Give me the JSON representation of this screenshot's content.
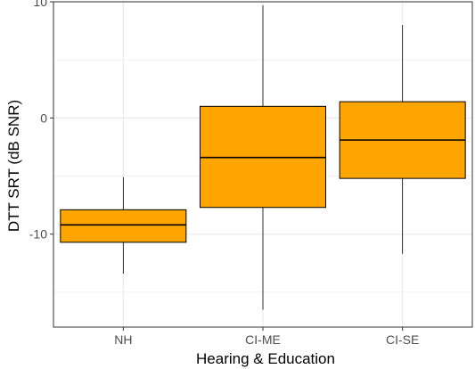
{
  "chart_data": {
    "type": "boxplot",
    "title": "",
    "xlabel": "Hearing & Education",
    "ylabel": "DTT SRT (dB SNR)",
    "ylim": [
      -18,
      10
    ],
    "y_ticks": [
      10,
      0,
      -10
    ],
    "y_minor_ticks": [
      5,
      -5,
      -15
    ],
    "grid": true,
    "box_fill": "#FFA500",
    "box_stroke": "#000000",
    "grid_color": "#EBEBEB",
    "categories": [
      "NH",
      "CI-ME",
      "CI-SE"
    ],
    "boxes": [
      {
        "category": "NH",
        "min": -13.4,
        "q1": -10.7,
        "median": -9.2,
        "q3": -7.9,
        "max": -5.1
      },
      {
        "category": "CI-ME",
        "min": -16.5,
        "q1": -7.7,
        "median": -3.4,
        "q3": 1.0,
        "max": 9.7
      },
      {
        "category": "CI-SE",
        "min": -11.7,
        "q1": -5.2,
        "median": -1.9,
        "q3": 1.4,
        "max": 8.0
      }
    ]
  }
}
